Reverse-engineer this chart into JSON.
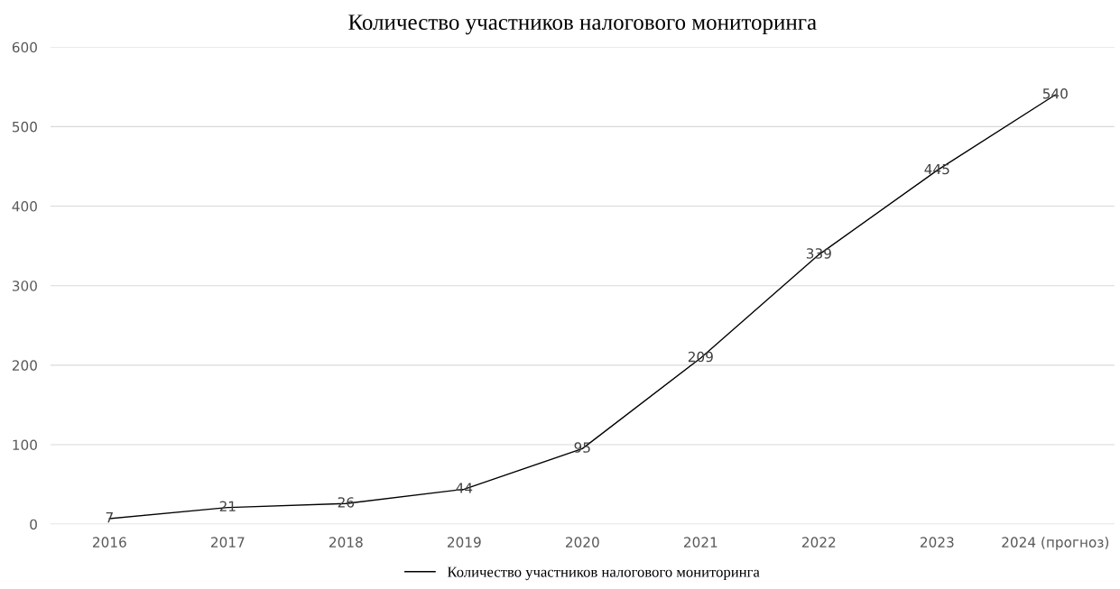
{
  "chart_data": {
    "type": "line",
    "title": "Количество участников налогового мониторинга",
    "categories": [
      "2016",
      "2017",
      "2018",
      "2019",
      "2020",
      "2021",
      "2022",
      "2023",
      "2024 (прогноз)"
    ],
    "series": [
      {
        "name": "Количество участников налогового мониторинга",
        "color": "#000000",
        "values": [
          7,
          21,
          26,
          44,
          95,
          209,
          339,
          445,
          540
        ]
      }
    ],
    "ylim": [
      0,
      600
    ],
    "yticks": [
      0,
      100,
      200,
      300,
      400,
      500,
      600
    ],
    "grid": "y",
    "legend": "bottom",
    "data_labels": true,
    "marker": "none",
    "line_style": "solid"
  }
}
